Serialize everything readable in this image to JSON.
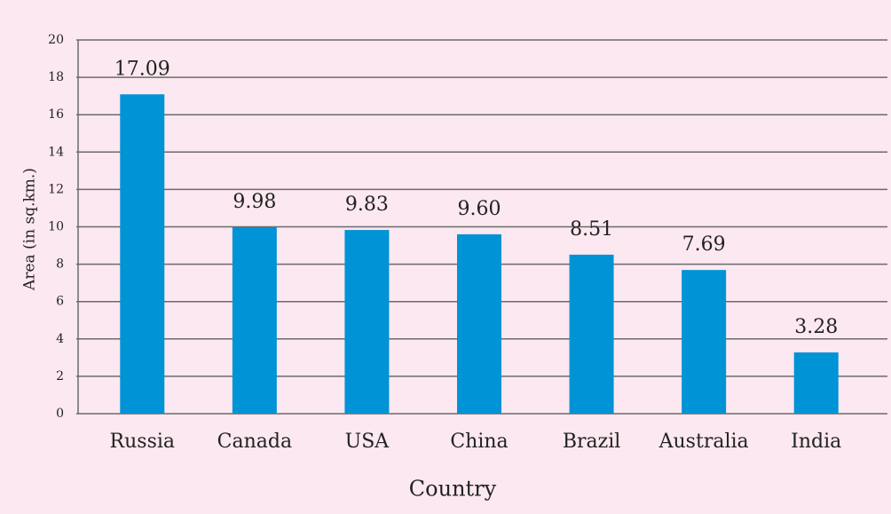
{
  "chart_data": {
    "type": "bar",
    "categories": [
      "Russia",
      "Canada",
      "USA",
      "China",
      "Brazil",
      "Australia",
      "India"
    ],
    "values": [
      17.09,
      9.98,
      9.83,
      9.6,
      8.51,
      7.69,
      3.28
    ],
    "value_labels": [
      "17.09",
      "9.98",
      "9.83",
      "9.60",
      "8.51",
      "7.69",
      "3.28"
    ],
    "color": "#0093d6",
    "ylim": [
      0,
      20
    ],
    "yticks": [
      0,
      2,
      4,
      6,
      8,
      10,
      12,
      14,
      16,
      18,
      20
    ],
    "grid": true,
    "xlabel": "Country",
    "ylabel": "Area (in sq.km.)"
  }
}
